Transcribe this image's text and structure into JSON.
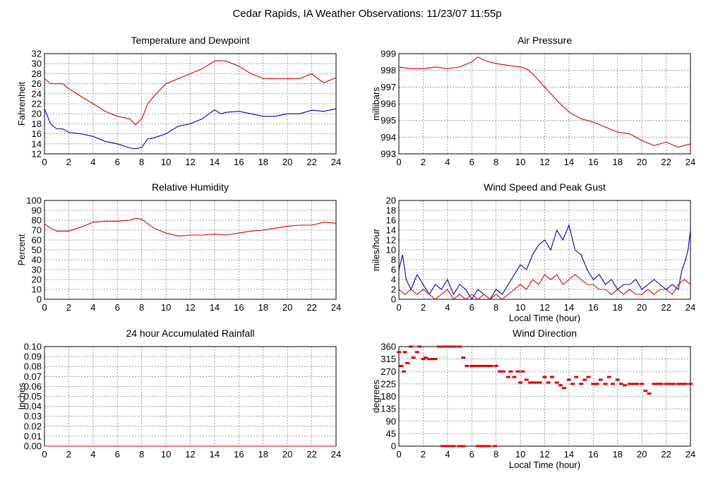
{
  "page": {
    "title": "Cedar Rapids, IA Weather Observations: 11/23/07 11:55p"
  },
  "colors": {
    "red": "#dd0000",
    "blue": "#0000cc",
    "grid": "#888888"
  },
  "chart_data": [
    {
      "id": "temp",
      "type": "line",
      "title": "Temperature and Dewpoint",
      "xlabel": "",
      "ylabel": "Fahrenheit",
      "xlim": [
        0,
        24
      ],
      "ylim": [
        12,
        32
      ],
      "xticks": [
        0,
        2,
        4,
        6,
        8,
        10,
        12,
        14,
        16,
        18,
        20,
        22,
        24
      ],
      "yticks": [
        12,
        14,
        16,
        18,
        20,
        22,
        24,
        26,
        28,
        30,
        32
      ],
      "grid": true,
      "series": [
        {
          "color": "#dd0000",
          "x": [
            0,
            0.5,
            1,
            1.5,
            2,
            3,
            4,
            5,
            6,
            7,
            7.5,
            8,
            8.5,
            9,
            10,
            11,
            12,
            13,
            14,
            14.5,
            15,
            16,
            17,
            18,
            19,
            20,
            21,
            22,
            22.5,
            23,
            24
          ],
          "y": [
            27,
            26,
            26,
            26,
            25,
            23.5,
            22,
            20.5,
            19.5,
            19,
            17.8,
            19,
            22,
            23.5,
            26,
            27,
            28,
            29,
            30.5,
            30.6,
            30.5,
            29.5,
            28,
            27,
            27,
            27,
            27,
            28,
            27,
            26.2,
            27.2
          ]
        },
        {
          "color": "#0000cc",
          "x": [
            0,
            0.5,
            1,
            1.5,
            2,
            3,
            4,
            5,
            6,
            7,
            7.5,
            8,
            8.5,
            9,
            10,
            11,
            12,
            13,
            14,
            14.5,
            15,
            16,
            17,
            18,
            19,
            20,
            21,
            22,
            23,
            24
          ],
          "y": [
            21,
            18,
            17,
            17,
            16.3,
            16,
            15.5,
            14.5,
            14,
            13.2,
            13,
            13.3,
            15,
            15.2,
            16,
            17.5,
            18,
            19,
            20.8,
            20,
            20.3,
            20.5,
            20,
            19.5,
            19.5,
            20,
            20,
            20.7,
            20.5,
            21
          ]
        }
      ]
    },
    {
      "id": "pressure",
      "type": "line",
      "title": "Air Pressure",
      "xlabel": "",
      "ylabel": "millibars",
      "xlim": [
        0,
        24
      ],
      "ylim": [
        993,
        999
      ],
      "xticks": [
        0,
        2,
        4,
        6,
        8,
        10,
        12,
        14,
        16,
        18,
        20,
        22,
        24
      ],
      "yticks": [
        993,
        994,
        995,
        996,
        997,
        998,
        999
      ],
      "grid": true,
      "series": [
        {
          "color": "#dd0000",
          "x": [
            0,
            1,
            2,
            3,
            4,
            5,
            6,
            6.5,
            7,
            8,
            9,
            10,
            10.5,
            11,
            11.5,
            12,
            13,
            14,
            15,
            16,
            17,
            18,
            19,
            20,
            21,
            22,
            23,
            24
          ],
          "y": [
            998.2,
            998.1,
            998.1,
            998.2,
            998.1,
            998.2,
            998.5,
            998.8,
            998.6,
            998.4,
            998.3,
            998.2,
            998.1,
            997.8,
            997.4,
            997,
            996.2,
            995.5,
            995.1,
            994.9,
            994.6,
            994.3,
            994.2,
            993.8,
            993.5,
            993.7,
            993.4,
            993.6
          ]
        }
      ]
    },
    {
      "id": "rh",
      "type": "line",
      "title": "Relative Humidity",
      "xlabel": "",
      "ylabel": "Percent",
      "xlim": [
        0,
        24
      ],
      "ylim": [
        0,
        100
      ],
      "xticks": [
        0,
        2,
        4,
        6,
        8,
        10,
        12,
        14,
        16,
        18,
        20,
        22,
        24
      ],
      "yticks": [
        0,
        10,
        20,
        30,
        40,
        50,
        60,
        70,
        80,
        90,
        100
      ],
      "grid": true,
      "series": [
        {
          "color": "#dd0000",
          "x": [
            0,
            0.5,
            1,
            2,
            3,
            4,
            5,
            6,
            7,
            7.5,
            8,
            9,
            10,
            11,
            12,
            13,
            14,
            15,
            16,
            17,
            18,
            19,
            20,
            21,
            22,
            23,
            24
          ],
          "y": [
            76,
            72,
            69,
            69,
            73,
            78,
            79,
            79,
            80,
            82,
            81,
            72,
            67,
            64,
            65,
            65,
            66,
            65,
            67,
            69,
            70,
            72,
            74,
            75,
            75,
            78,
            77
          ]
        }
      ]
    },
    {
      "id": "wind",
      "type": "line",
      "title": "Wind Speed and Peak Gust",
      "xlabel": "Local Time (hour)",
      "ylabel": "miles/hour",
      "xlim": [
        0,
        24
      ],
      "ylim": [
        0,
        20
      ],
      "xticks": [
        0,
        2,
        4,
        6,
        8,
        10,
        12,
        14,
        16,
        18,
        20,
        22,
        24
      ],
      "yticks": [
        0,
        2,
        4,
        6,
        8,
        10,
        12,
        14,
        16,
        18,
        20
      ],
      "grid": true,
      "series": [
        {
          "color": "#0000cc",
          "x": [
            0,
            0.3,
            0.6,
            1,
            1.5,
            2,
            2.5,
            3,
            3.5,
            4,
            4.5,
            5,
            5.5,
            6,
            6.5,
            7,
            7.5,
            8,
            8.5,
            9,
            9.5,
            10,
            10.5,
            11,
            11.5,
            12,
            12.5,
            13,
            13.5,
            14,
            14.5,
            15,
            15.5,
            16,
            16.5,
            17,
            17.5,
            18,
            18.5,
            19,
            19.5,
            20,
            20.5,
            21,
            21.5,
            22,
            22.5,
            23,
            23.3,
            23.6,
            23.8,
            24
          ],
          "y": [
            6,
            9,
            4,
            2,
            5,
            3,
            1,
            3,
            2,
            4,
            1,
            3,
            2,
            0,
            2,
            1,
            0,
            2,
            1,
            3,
            5,
            7,
            6,
            9,
            11,
            12,
            10,
            14,
            12,
            15,
            10,
            9,
            6,
            4,
            5,
            3,
            4,
            2,
            3,
            3,
            4,
            2,
            3,
            4,
            3,
            2,
            3,
            2,
            6,
            8,
            10,
            14
          ]
        },
        {
          "color": "#dd0000",
          "x": [
            0,
            0.5,
            1,
            1.5,
            2,
            2.5,
            3,
            3.5,
            4,
            4.5,
            5,
            5.5,
            6,
            6.5,
            7,
            7.5,
            8,
            8.5,
            9,
            9.5,
            10,
            10.5,
            11,
            11.5,
            12,
            12.5,
            13,
            13.5,
            14,
            14.5,
            15,
            15.5,
            16,
            16.5,
            17,
            17.5,
            18,
            18.5,
            19,
            19.5,
            20,
            20.5,
            21,
            21.5,
            22,
            22.5,
            23,
            23.5,
            24
          ],
          "y": [
            2,
            1,
            2,
            1,
            2,
            1,
            0,
            1,
            2,
            0,
            1,
            0,
            1,
            0,
            1,
            0,
            1,
            0,
            1,
            2,
            3,
            2,
            4,
            3,
            5,
            4,
            5,
            3,
            4,
            5,
            4,
            3,
            3,
            2,
            2,
            1,
            2,
            1,
            2,
            1,
            1,
            2,
            1,
            2,
            2,
            1,
            3,
            4,
            3
          ]
        }
      ]
    },
    {
      "id": "rain",
      "type": "line",
      "title": "24 hour Accumulated Rainfall",
      "xlabel": "",
      "ylabel": "Inches",
      "xlim": [
        0,
        24
      ],
      "ylim": [
        0,
        0.1
      ],
      "xticks": [
        0,
        2,
        4,
        6,
        8,
        10,
        12,
        14,
        16,
        18,
        20,
        22,
        24
      ],
      "yticks": [
        0,
        0.01,
        0.02,
        0.03,
        0.04,
        0.05,
        0.06,
        0.07,
        0.08,
        0.09,
        0.1
      ],
      "ydecimals": 2,
      "grid": true,
      "series": [
        {
          "color": "#dd0000",
          "x": [
            0,
            24
          ],
          "y": [
            0,
            0
          ]
        }
      ]
    },
    {
      "id": "winddir",
      "type": "scatter",
      "title": "Wind Direction",
      "xlabel": "Local Time (hour)",
      "ylabel": "degrees",
      "xlim": [
        0,
        24
      ],
      "ylim": [
        0,
        360
      ],
      "xticks": [
        0,
        2,
        4,
        6,
        8,
        10,
        12,
        14,
        16,
        18,
        20,
        22,
        24
      ],
      "yticks": [
        0,
        45,
        90,
        135,
        180,
        225,
        270,
        315,
        360
      ],
      "grid": true,
      "series": [
        {
          "color": "#dd0000",
          "x": [
            0,
            0.2,
            0.4,
            0.5,
            0.7,
            1,
            1.2,
            1.5,
            1.7,
            2,
            2.2,
            2.5,
            2.8,
            3,
            3.3,
            3.6,
            3.8,
            4,
            4.3,
            4.6,
            5,
            5.3,
            5.6,
            6,
            6.3,
            6.6,
            6.8,
            7,
            7.3,
            7.6,
            8,
            8.3,
            8.6,
            9,
            9.2,
            9.5,
            9.8,
            10,
            10.2,
            10.5,
            10.8,
            11,
            11.3,
            11.6,
            12,
            12.3,
            12.6,
            13,
            13.3,
            13.6,
            14,
            14.3,
            14.6,
            15,
            15.3,
            15.6,
            16,
            16.3,
            16.6,
            17,
            17.3,
            17.6,
            18,
            18.3,
            18.6,
            19,
            19.3,
            19.6,
            20,
            20.3,
            20.6,
            21,
            21.3,
            21.6,
            22,
            22.3,
            22.6,
            23,
            23.3,
            23.6,
            24
          ],
          "y": [
            340,
            290,
            270,
            340,
            300,
            360,
            320,
            340,
            360,
            315,
            320,
            315,
            315,
            315,
            360,
            360,
            360,
            360,
            360,
            360,
            360,
            320,
            290,
            290,
            290,
            290,
            290,
            290,
            290,
            290,
            290,
            270,
            270,
            250,
            270,
            250,
            270,
            230,
            270,
            240,
            230,
            230,
            230,
            230,
            250,
            230,
            250,
            230,
            220,
            210,
            240,
            225,
            250,
            225,
            240,
            250,
            225,
            225,
            240,
            225,
            250,
            225,
            240,
            225,
            220,
            225,
            225,
            225,
            225,
            200,
            190,
            225,
            225,
            225,
            225,
            225,
            225,
            225,
            225,
            225,
            225
          ]
        },
        {
          "color": "#dd0000",
          "x": [
            3.6,
            3.9,
            4.2,
            4.5,
            5,
            5.3,
            6.5,
            6.8,
            7.1,
            7.4,
            7.9
          ],
          "y": [
            0,
            0,
            0,
            0,
            0,
            0,
            0,
            0,
            0,
            0,
            0
          ]
        }
      ]
    }
  ]
}
